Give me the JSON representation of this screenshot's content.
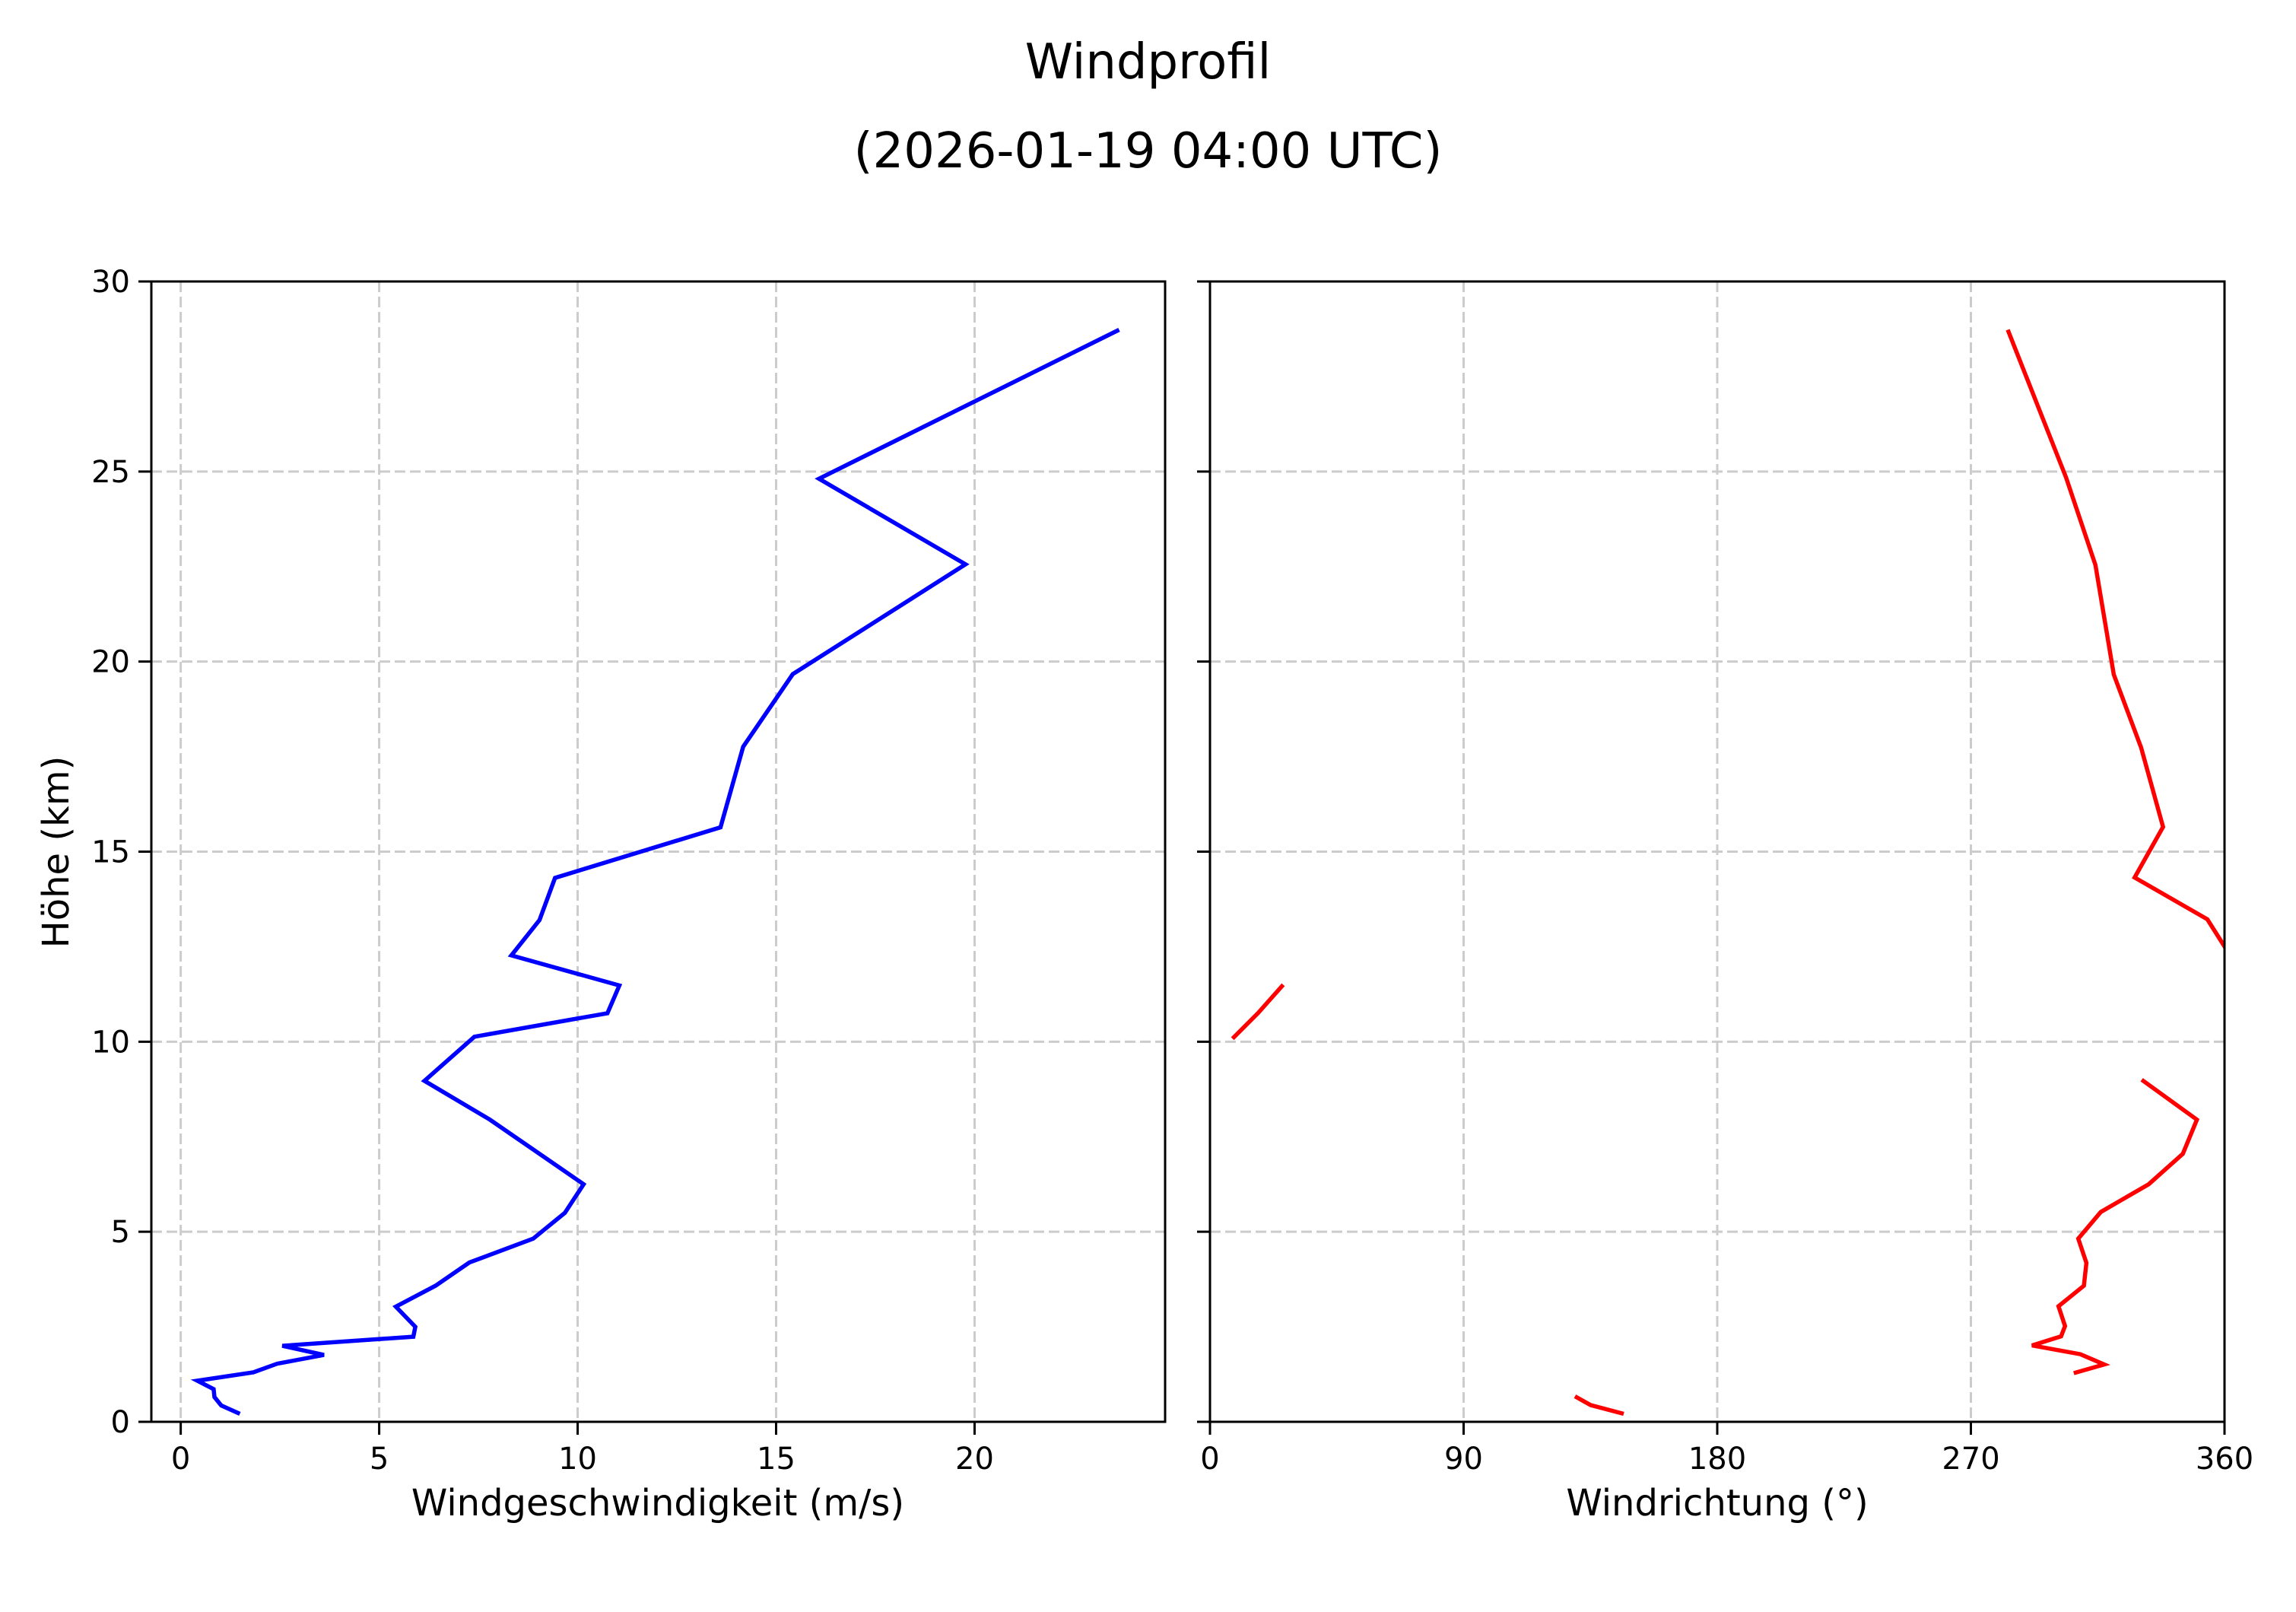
{
  "figure": {
    "title_line1": "Windprofil",
    "title_line2": "(2026-01-19 04:00 UTC)"
  },
  "colors": {
    "speed_line": "#0000ff",
    "direction_line": "#ff0000",
    "grid": "#cccccc",
    "axes": "#000000",
    "background": "#ffffff"
  },
  "chart_data": [
    {
      "type": "line",
      "panel": "left",
      "title": "",
      "xlabel": "Windgeschwindigkeit (m/s)",
      "ylabel": "Höhe (km)",
      "xlim": [
        -0.74,
        24.8
      ],
      "ylim": [
        0,
        30
      ],
      "xticks": [
        0,
        5,
        10,
        15,
        20
      ],
      "yticks": [
        0,
        5,
        10,
        15,
        20,
        25,
        30
      ],
      "grid": true,
      "series": [
        {
          "name": "Windgeschwindigkeit",
          "color": "#0000ff",
          "x": [
            1.49,
            1.02,
            0.85,
            0.83,
            0.42,
            1.83,
            2.43,
            3.61,
            2.56,
            5.86,
            5.91,
            5.42,
            6.42,
            7.27,
            8.88,
            9.68,
            10.15,
            7.79,
            6.14,
            7.4,
            10.75,
            11.05,
            8.33,
            9.04,
            9.43,
            13.6,
            14.17,
            15.42,
            19.77,
            16.08,
            23.64
          ],
          "y": [
            0.21,
            0.43,
            0.65,
            0.86,
            1.08,
            1.3,
            1.53,
            1.76,
            2.0,
            2.24,
            2.5,
            3.03,
            3.58,
            4.19,
            4.82,
            5.5,
            6.25,
            7.95,
            8.97,
            10.13,
            10.75,
            11.48,
            12.27,
            13.2,
            14.31,
            15.64,
            17.76,
            19.67,
            22.56,
            24.81,
            28.73
          ]
        }
      ]
    },
    {
      "type": "line",
      "panel": "right",
      "title": "",
      "xlabel": "Windrichtung (°)",
      "ylabel": "",
      "xlim": [
        0,
        360
      ],
      "ylim": [
        0,
        30
      ],
      "xticks": [
        0,
        90,
        180,
        270,
        360
      ],
      "yticks": [
        0,
        5,
        10,
        15,
        20,
        25,
        30
      ],
      "show_ytick_labels": false,
      "grid": true,
      "series": [
        {
          "name": "Windrichtung",
          "color": "#ff0000",
          "x": [
            146.8,
            135.1,
            129.5,
            null,
            null,
            306.5,
            317.3,
            308.8,
            291.7,
            302.0,
            303.4,
            301.1,
            310.1,
            311.0,
            308.1,
            316.1,
            333.1,
            345.2,
            350.2,
            330.6,
            null,
            8.0,
            17.0,
            26.0,
            null,
            362.0,
            353.9,
            328.1,
            338.2,
            330.4,
            320.7,
            314.2,
            303.8,
            283.1
          ],
          "y": [
            0.21,
            0.44,
            0.67,
            0.86,
            1.08,
            1.28,
            1.51,
            1.78,
            2.01,
            2.25,
            2.52,
            3.04,
            3.58,
            4.18,
            4.82,
            5.52,
            6.25,
            7.05,
            7.95,
            9.0,
            9.5,
            10.08,
            10.75,
            11.5,
            11.9,
            12.27,
            13.22,
            14.32,
            15.65,
            17.74,
            19.66,
            22.54,
            24.84,
            28.73
          ]
        }
      ]
    }
  ]
}
